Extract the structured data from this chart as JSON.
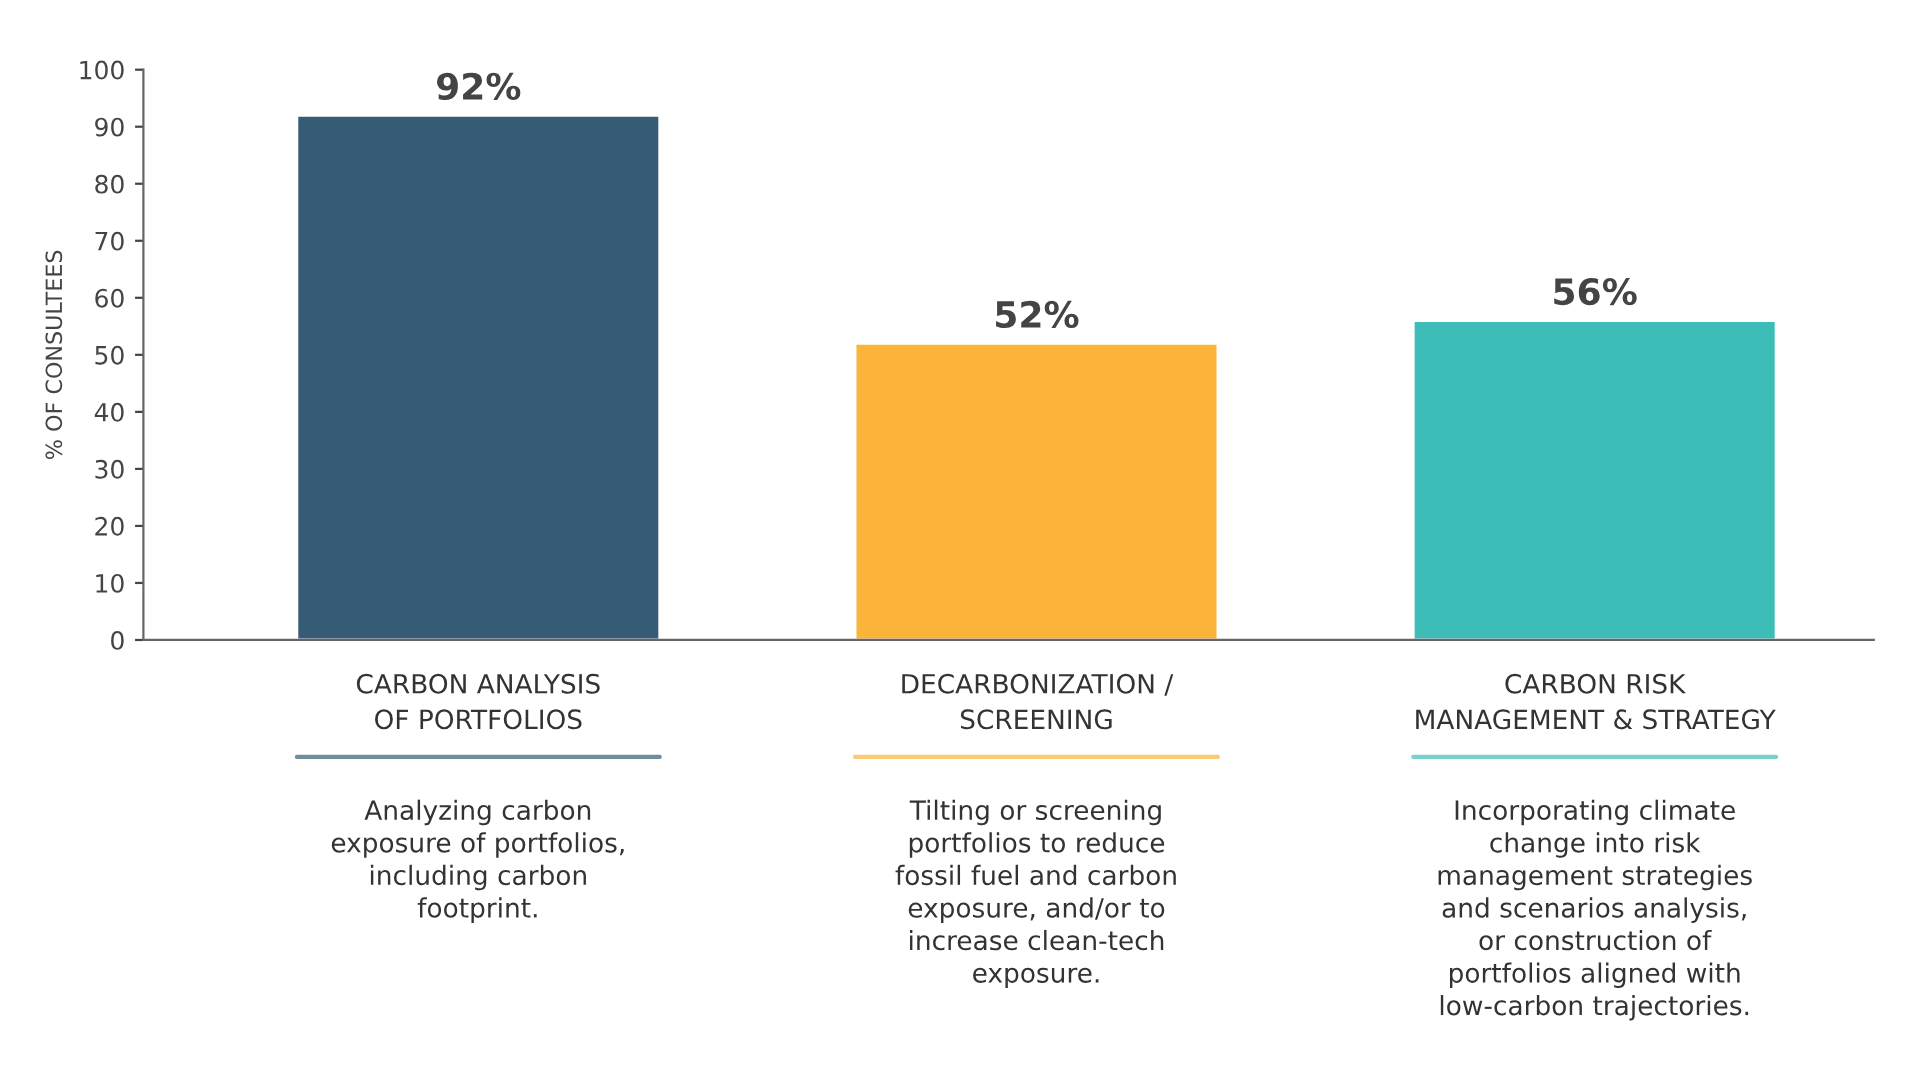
{
  "chart_data": {
    "type": "bar",
    "ylabel": "% OF CONSULTEES",
    "categories": [
      "CARBON ANALYSIS\nOF PORTFOLIOS",
      "DECARBONIZATION /\nSCREENING",
      "CARBON RISK\nMANAGEMENT & STRATEGY"
    ],
    "values": [
      92,
      52,
      56
    ],
    "colors": [
      "#355c74",
      "#fbb33a",
      "#3dbdb8"
    ],
    "value_labels": [
      "92%",
      "52%",
      "56%"
    ],
    "ylim": [
      0,
      100
    ],
    "yticks": [
      0,
      10,
      20,
      30,
      40,
      50,
      60,
      70,
      80,
      90,
      100
    ],
    "grid": false,
    "legend": false,
    "annotations": [
      "Analyzing carbon\nexposure of portfolios,\nincluding carbon\nfootprint.",
      "Tilting or screening\nportfolios to reduce\nfossil fuel and carbon\nexposure, and/or to\nincrease clean-tech\nexposure.",
      "Incorporating climate\nchange into risk\nmanagement strategies\nand scenarios analysis,\nor construction of\nportfolios aligned with\nlow-carbon trajectories."
    ]
  }
}
